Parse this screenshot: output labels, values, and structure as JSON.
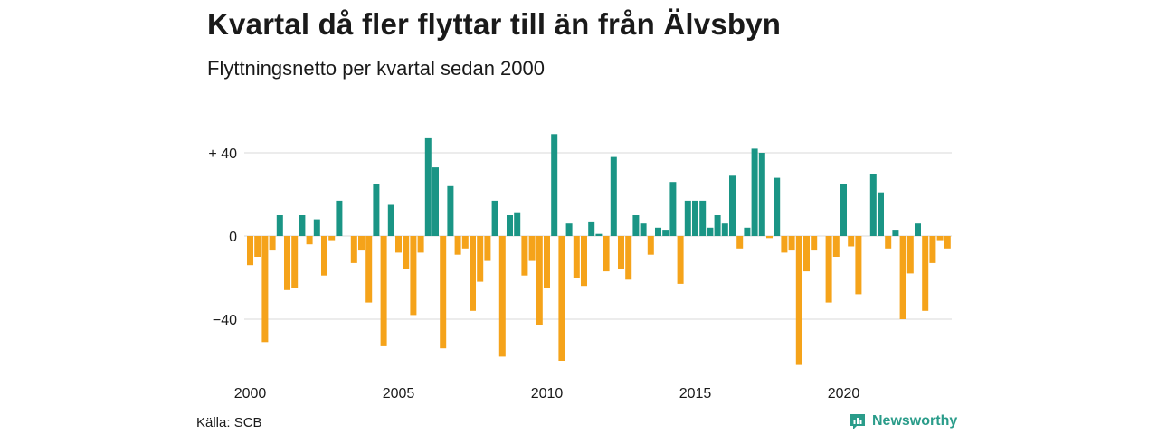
{
  "header": {
    "title": "Kvartal då fler flyttar till än från Älvsbyn",
    "subtitle": "Flyttningsnetto per kvartal sedan 2000"
  },
  "footer": {
    "source": "Källa: SCB",
    "brand": "Newsworthy"
  },
  "colors": {
    "positive": "#1a9585",
    "negative": "#f5a31a",
    "grid": "#d9d9d9",
    "brand": "#2a9c8a"
  },
  "chart_data": {
    "type": "bar",
    "y_ticks": [
      40,
      0,
      -40
    ],
    "y_tick_labels": [
      "+ 40",
      "0",
      "−40"
    ],
    "x_tick_labels": [
      "2000",
      "2005",
      "2010",
      "2015",
      "2020"
    ],
    "ylim": [
      -62,
      49
    ],
    "grid": true,
    "categories": [
      "2000 Q1",
      "2000 Q2",
      "2000 Q3",
      "2000 Q4",
      "2001 Q1",
      "2001 Q2",
      "2001 Q3",
      "2001 Q4",
      "2002 Q1",
      "2002 Q2",
      "2002 Q3",
      "2002 Q4",
      "2003 Q1",
      "2003 Q2",
      "2003 Q3",
      "2003 Q4",
      "2004 Q1",
      "2004 Q2",
      "2004 Q3",
      "2004 Q4",
      "2005 Q1",
      "2005 Q2",
      "2005 Q3",
      "2005 Q4",
      "2006 Q1",
      "2006 Q2",
      "2006 Q3",
      "2006 Q4",
      "2007 Q1",
      "2007 Q2",
      "2007 Q3",
      "2007 Q4",
      "2008 Q1",
      "2008 Q2",
      "2008 Q3",
      "2008 Q4",
      "2009 Q1",
      "2009 Q2",
      "2009 Q3",
      "2009 Q4",
      "2010 Q1",
      "2010 Q2",
      "2010 Q3",
      "2010 Q4",
      "2011 Q1",
      "2011 Q2",
      "2011 Q3",
      "2011 Q4",
      "2012 Q1",
      "2012 Q2",
      "2012 Q3",
      "2012 Q4",
      "2013 Q1",
      "2013 Q2",
      "2013 Q3",
      "2013 Q4",
      "2014 Q1",
      "2014 Q2",
      "2014 Q3",
      "2014 Q4",
      "2015 Q1",
      "2015 Q2",
      "2015 Q3",
      "2015 Q4",
      "2016 Q1",
      "2016 Q2",
      "2016 Q3",
      "2016 Q4",
      "2017 Q1",
      "2017 Q2",
      "2017 Q3",
      "2017 Q4",
      "2018 Q1",
      "2018 Q2",
      "2018 Q3",
      "2018 Q4",
      "2019 Q1",
      "2019 Q2",
      "2019 Q3",
      "2019 Q4",
      "2020 Q1",
      "2020 Q2",
      "2020 Q3",
      "2020 Q4",
      "2021 Q1",
      "2021 Q2",
      "2021 Q3",
      "2021 Q4",
      "2022 Q1",
      "2022 Q2",
      "2022 Q3",
      "2022 Q4",
      "2023 Q1",
      "2023 Q2",
      "2023 Q3",
      "2023 Q4"
    ],
    "values": [
      -14,
      -10,
      -51,
      -7,
      10,
      -26,
      -25,
      10,
      -4,
      8,
      -19,
      -2,
      17,
      0,
      -13,
      -7,
      -32,
      25,
      -53,
      15,
      -8,
      -16,
      -38,
      -8,
      47,
      33,
      -54,
      24,
      -9,
      -6,
      -36,
      -22,
      -12,
      17,
      -58,
      10,
      11,
      -19,
      -12,
      -43,
      -25,
      49,
      -60,
      6,
      -20,
      -24,
      7,
      1,
      -17,
      38,
      -16,
      -21,
      10,
      6,
      -9,
      4,
      3,
      26,
      -23,
      17,
      17,
      17,
      4,
      10,
      6,
      29,
      -6,
      4,
      42,
      40,
      -1,
      28,
      -8,
      -7,
      -62,
      -17,
      -7,
      0,
      -32,
      -10,
      25,
      -5,
      -28,
      0,
      30,
      21,
      -6,
      3,
      -40,
      -18,
      6,
      -36,
      -13,
      -2,
      -6,
      0
    ]
  }
}
